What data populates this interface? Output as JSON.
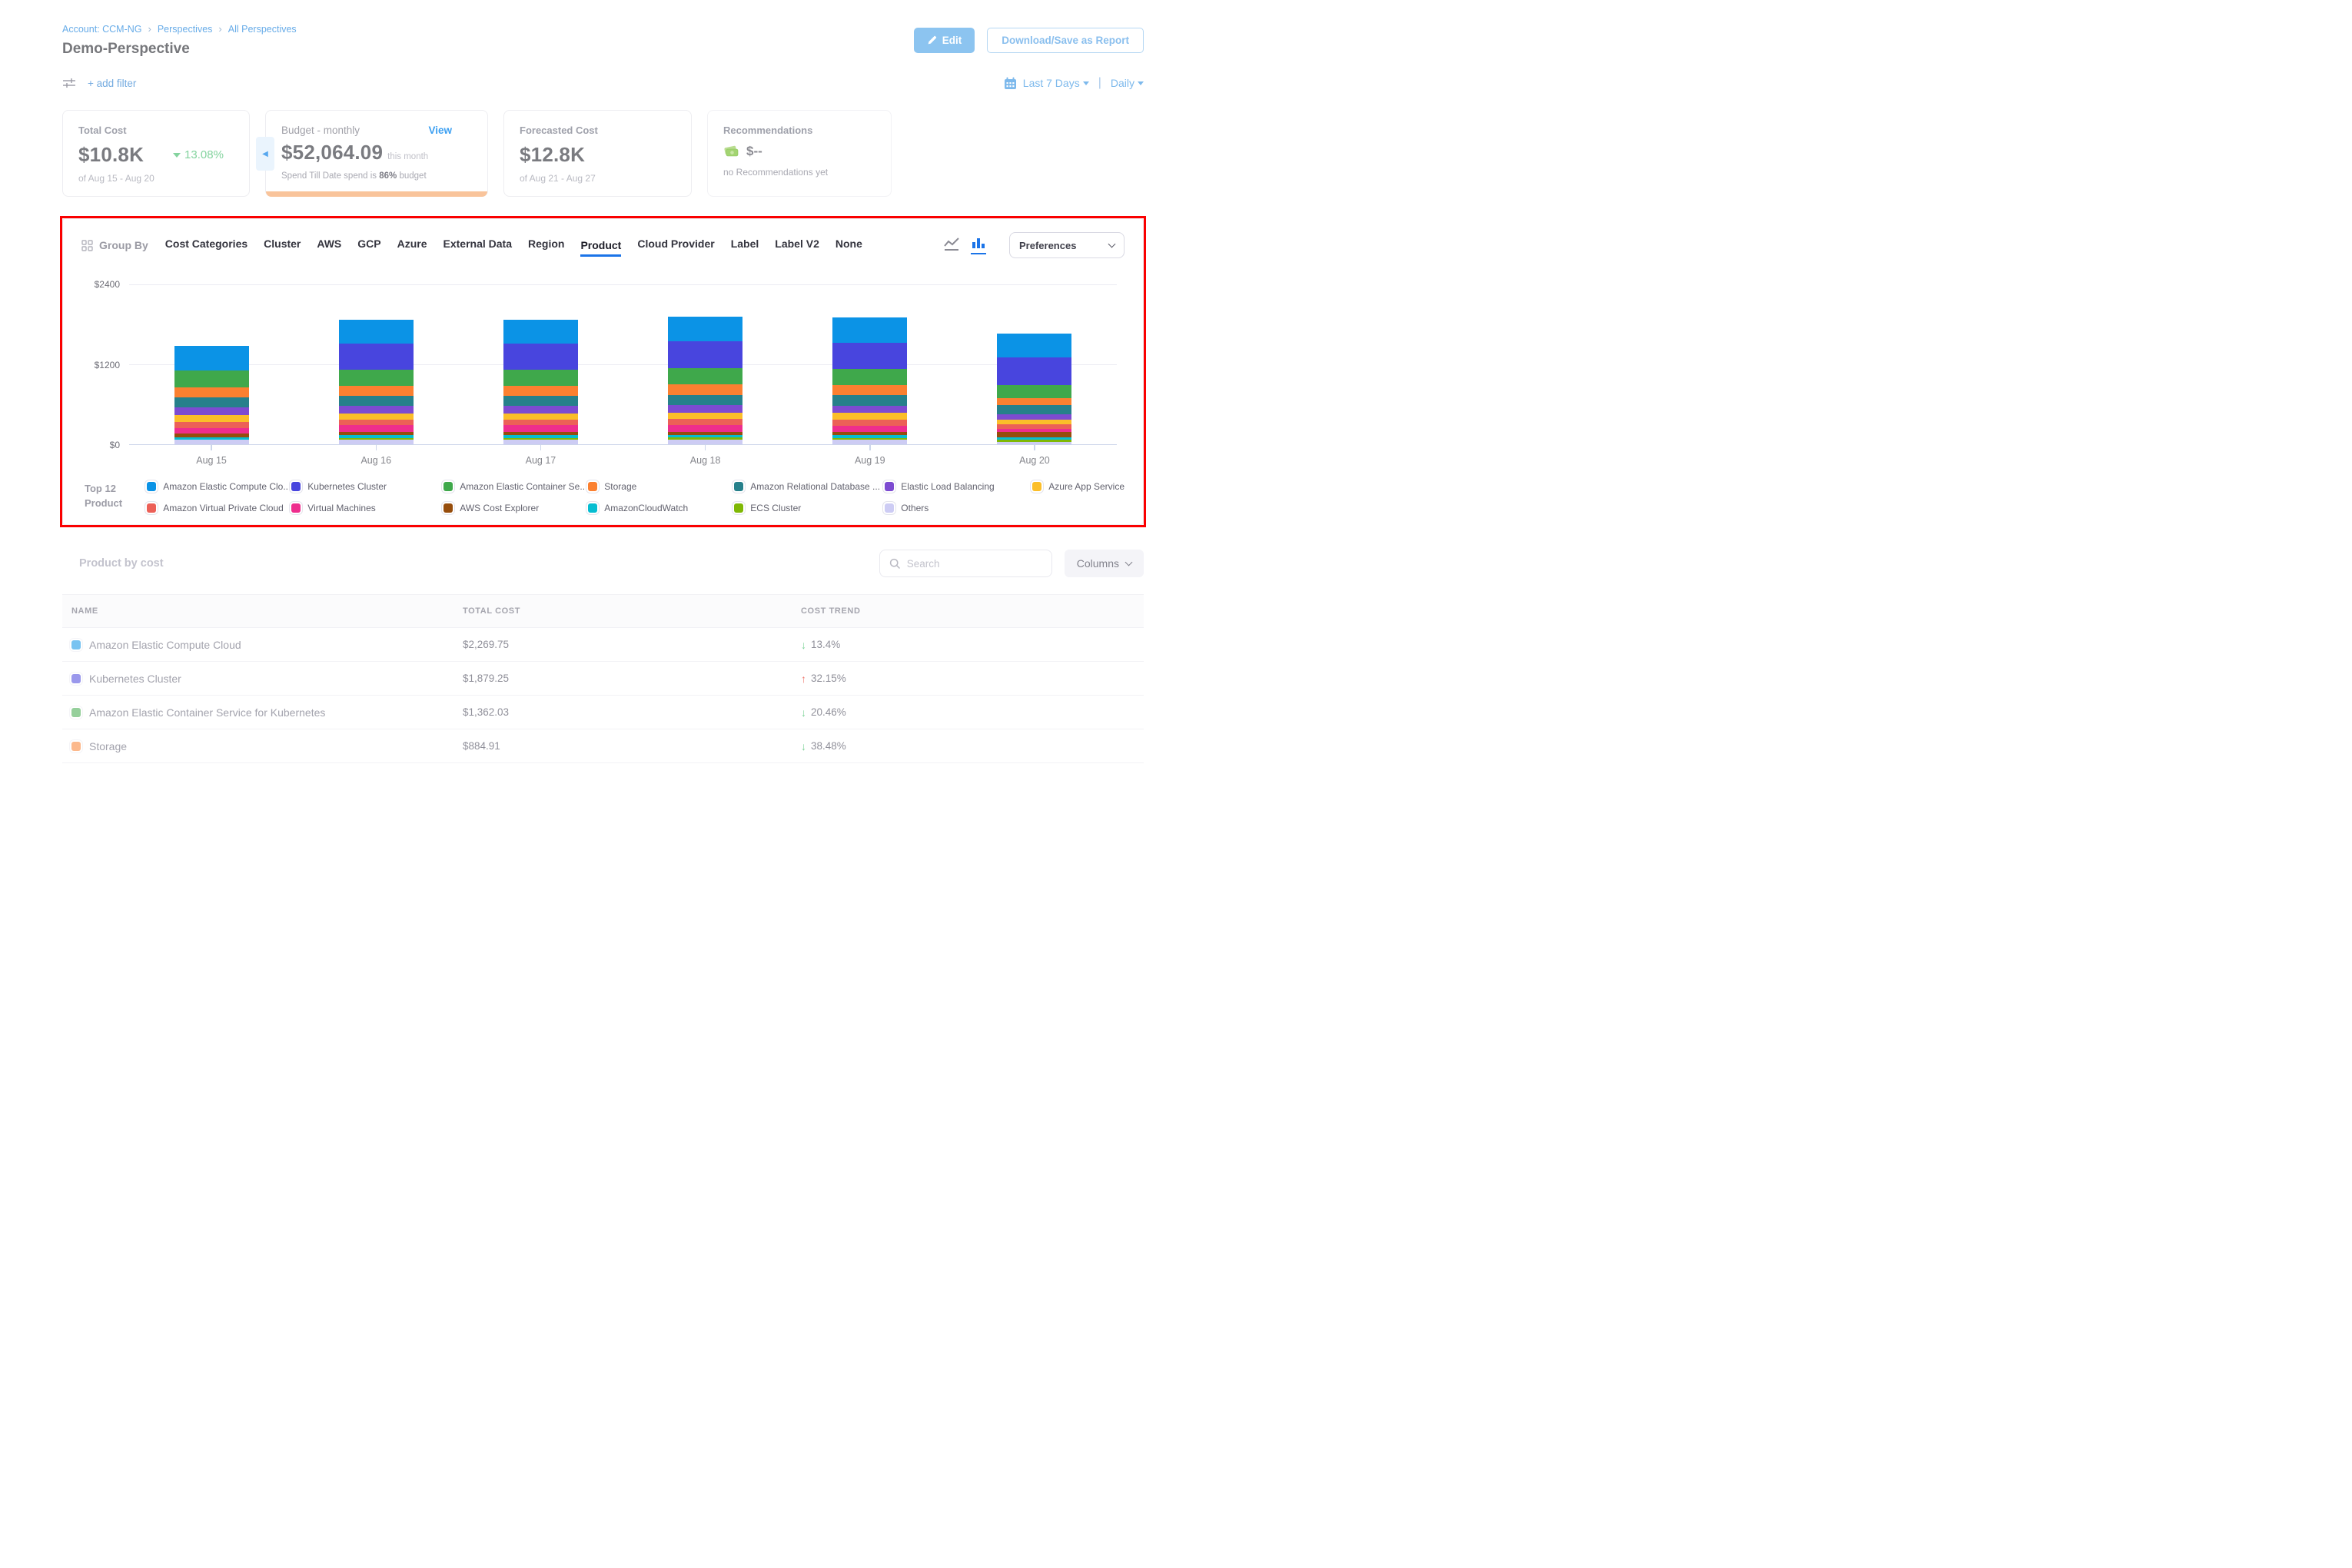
{
  "header": {
    "breadcrumb": {
      "account": "Account: CCM-NG",
      "perspectives": "Perspectives",
      "all_perspectives": "All Perspectives"
    },
    "title": "Demo-Perspective",
    "edit_label": "Edit",
    "download_label": "Download/Save as Report"
  },
  "filter_bar": {
    "add_filter_label": "+ add filter",
    "date_range": "Last 7 Days",
    "granularity": "Daily"
  },
  "cards": {
    "total_cost": {
      "label": "Total Cost",
      "value": "$10.8K",
      "trend_value": "13.08%",
      "trend_direction": "down",
      "period": "of Aug 15 - Aug 20"
    },
    "budget": {
      "label": "Budget - monthly",
      "view_label": "View",
      "value": "$52,064.09",
      "value_suffix": "this month",
      "note_prefix": "Spend Till Date spend is",
      "note_pct": "86%",
      "note_suffix": "budget",
      "progress_color": "#f9c49b"
    },
    "forecasted": {
      "label": "Forecasted Cost",
      "value": "$12.8K",
      "period": "of Aug 21 - Aug 27"
    },
    "recommendations": {
      "label": "Recommendations",
      "value": "$--",
      "note": "no Recommendations yet"
    }
  },
  "group_by": {
    "label": "Group By",
    "tabs": [
      "Cost Categories",
      "Cluster",
      "AWS",
      "GCP",
      "Azure",
      "External Data",
      "Region",
      "Product",
      "Cloud Provider",
      "Label",
      "Label V2",
      "None"
    ],
    "active_tab": "Product",
    "preferences_label": "Preferences"
  },
  "chart_data": {
    "type": "bar",
    "stacked": true,
    "title": "Daily cost grouped by Product",
    "categories": [
      "Aug 15",
      "Aug 16",
      "Aug 17",
      "Aug 18",
      "Aug 19",
      "Aug 20"
    ],
    "y_ticks": [
      "$0",
      "$1200",
      "$2400"
    ],
    "ylim": [
      0,
      2400
    ],
    "grid": true,
    "legend_position": "bottom",
    "legend_title_line1": "Top 12",
    "legend_title_line2": "Product",
    "series": [
      {
        "name": "Amazon Elastic Compute Clo...",
        "full_name": "Amazon Elastic Compute Cloud",
        "color": "#0b93e6",
        "values": [
          373,
          362,
          362,
          370,
          380,
          356
        ]
      },
      {
        "name": "Kubernetes Cluster",
        "full_name": "Kubernetes Cluster",
        "color": "#4845de",
        "values": [
          0,
          385,
          385,
          400,
          390,
          413
        ]
      },
      {
        "name": "Amazon Elastic Container Se...",
        "full_name": "Amazon Elastic Container Service for Kubernetes",
        "color": "#3fa84b",
        "values": [
          250,
          241,
          241,
          245,
          235,
          200
        ]
      },
      {
        "name": "Storage",
        "full_name": "Storage",
        "color": "#fb8030",
        "values": [
          150,
          153,
          153,
          155,
          160,
          105
        ]
      },
      {
        "name": "Amazon Relational Database ...",
        "full_name": "Amazon Relational Database Service",
        "color": "#26808b",
        "values": [
          145,
          153,
          153,
          150,
          150,
          133
        ]
      },
      {
        "name": "Elastic Load Balancing",
        "full_name": "Elastic Load Balancing",
        "color": "#7d4bd1",
        "values": [
          115,
          105,
          105,
          110,
          110,
          86
        ]
      },
      {
        "name": "Azure App Service",
        "full_name": "Azure App Service",
        "color": "#fbbe29",
        "values": [
          105,
          95,
          95,
          100,
          100,
          63
        ]
      },
      {
        "name": "Amazon Virtual Private Cloud",
        "full_name": "Amazon Virtual Private Cloud",
        "color": "#ec6057",
        "values": [
          95,
          86,
          86,
          90,
          90,
          77
        ]
      },
      {
        "name": "Virtual Machines",
        "full_name": "Virtual Machines",
        "color": "#ee2d8d",
        "values": [
          82,
          103,
          103,
          100,
          95,
          38
        ]
      },
      {
        "name": "AWS Cost Explorer",
        "full_name": "AWS Cost Explorer",
        "color": "#964d0c",
        "values": [
          60,
          48,
          48,
          50,
          50,
          86
        ]
      },
      {
        "name": "AmazonCloudWatch",
        "full_name": "AmazonCloudWatch",
        "color": "#06bdd1",
        "values": [
          35,
          38,
          38,
          38,
          38,
          35
        ]
      },
      {
        "name": "ECS Cluster",
        "full_name": "ECS Cluster",
        "color": "#7fb805",
        "values": [
          0,
          25,
          25,
          25,
          25,
          29
        ]
      },
      {
        "name": "Others",
        "full_name": "Others",
        "color": "#cdccf4",
        "values": [
          65,
          70,
          70,
          74,
          72,
          38
        ]
      }
    ],
    "stack_order": "series listed top-to-bottom; rendered stack has first series on top"
  },
  "table": {
    "title": "Product by cost",
    "search_placeholder": "Search",
    "columns_label": "Columns",
    "headers": [
      "NAME",
      "TOTAL COST",
      "COST TREND"
    ],
    "rows": [
      {
        "name": "Amazon Elastic Compute Cloud",
        "color": "#0b93e6",
        "total_cost": "$2,269.75",
        "trend_direction": "down",
        "trend_value": "13.4%"
      },
      {
        "name": "Kubernetes Cluster",
        "color": "#4845de",
        "total_cost": "$1,879.25",
        "trend_direction": "up",
        "trend_value": "32.15%"
      },
      {
        "name": "Amazon Elastic Container Service for Kubernetes",
        "color": "#3fa84b",
        "total_cost": "$1,362.03",
        "trend_direction": "down",
        "trend_value": "20.46%"
      },
      {
        "name": "Storage",
        "color": "#fb8030",
        "total_cost": "$884.91",
        "trend_direction": "down",
        "trend_value": "38.48%"
      }
    ]
  }
}
